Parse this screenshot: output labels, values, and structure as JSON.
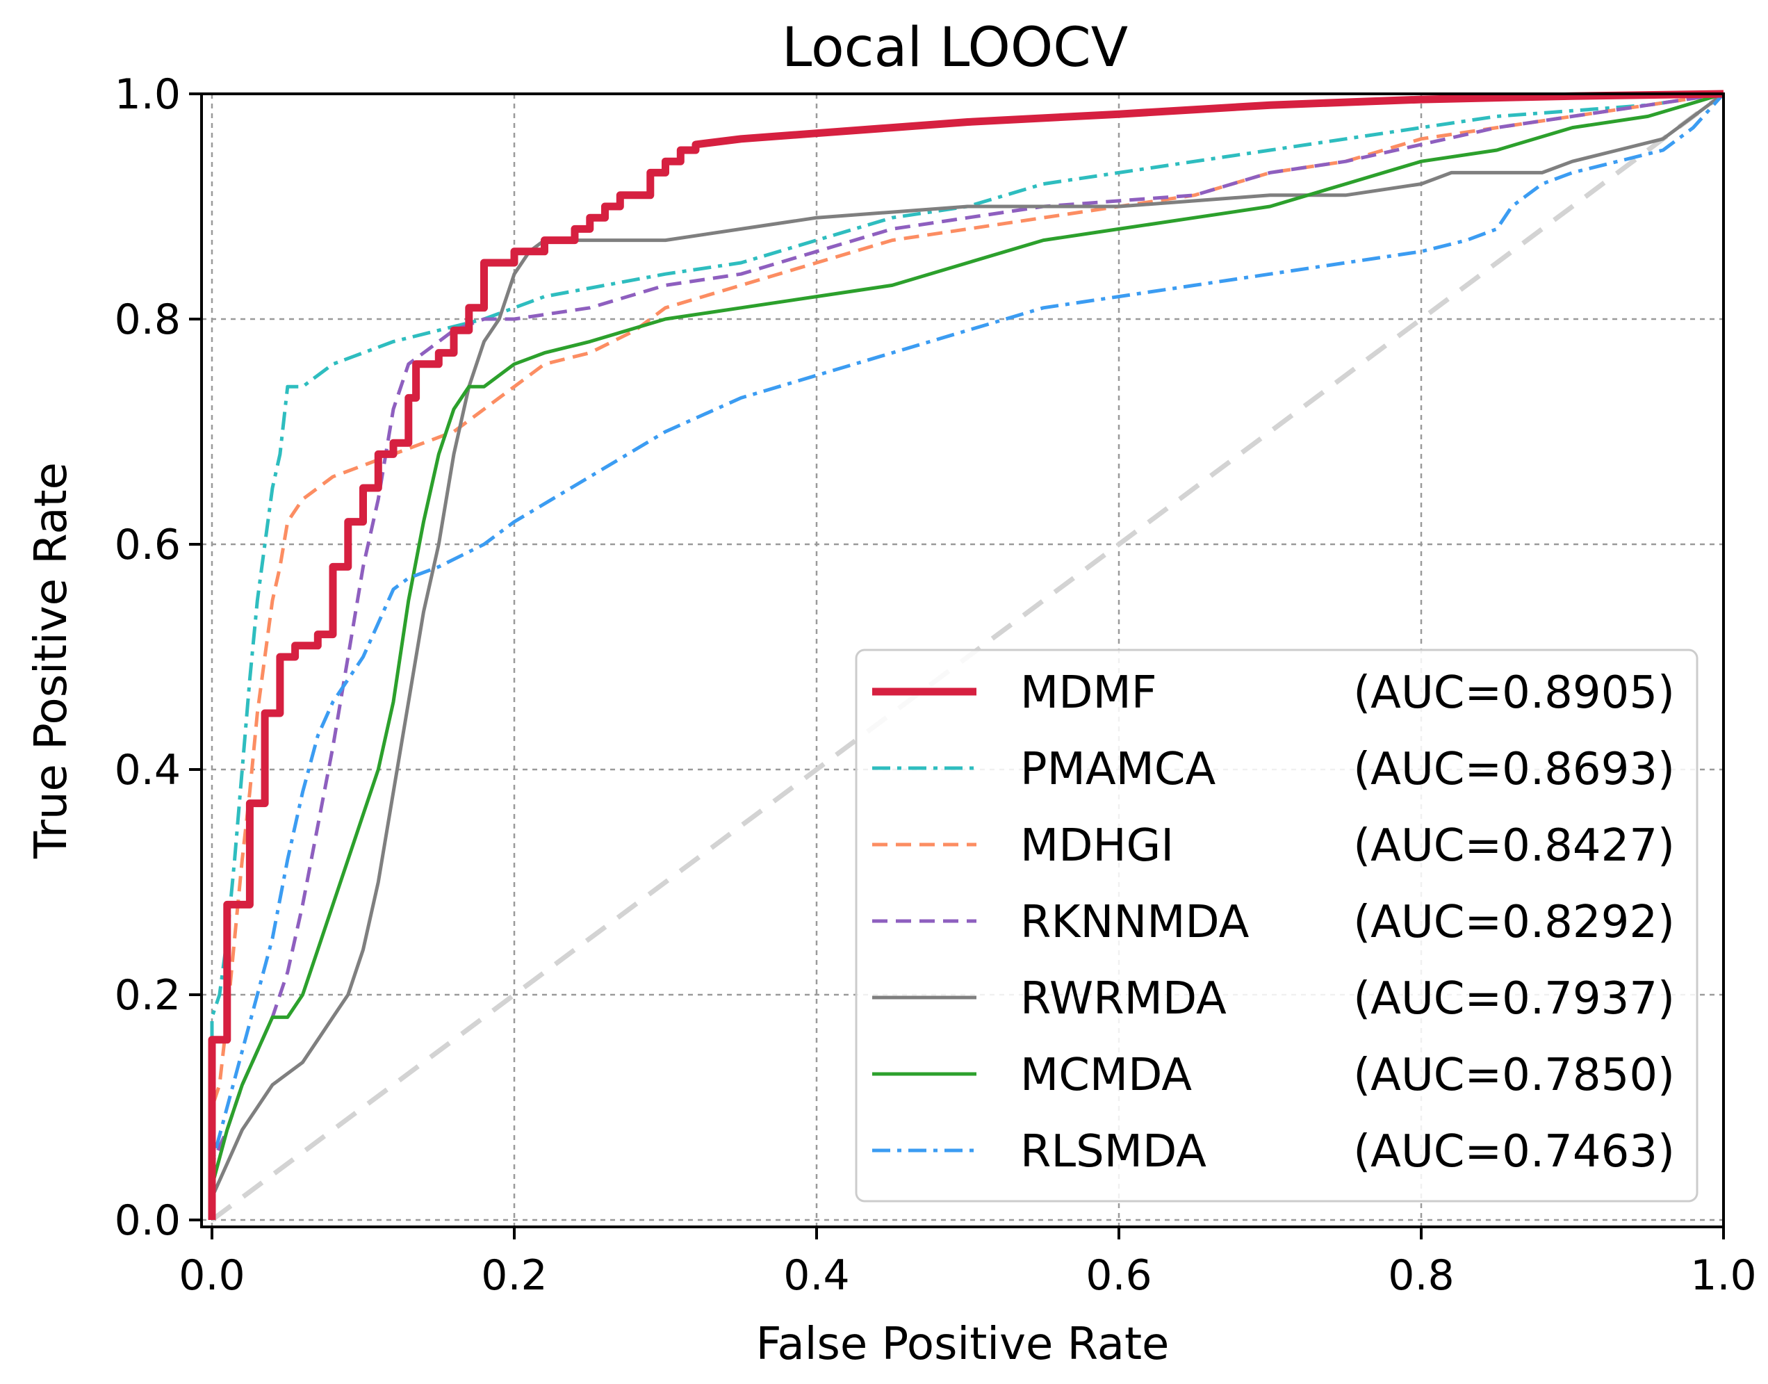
{
  "chart_data": {
    "type": "line",
    "title": "Local LOOCV",
    "xlabel": "False Positive Rate",
    "ylabel": "True Positive Rate",
    "xlim": [
      0.0,
      1.0
    ],
    "ylim": [
      0.0,
      1.0
    ],
    "xticks": [
      "0.0",
      "0.2",
      "0.4",
      "0.6",
      "0.8",
      "1.0"
    ],
    "yticks": [
      "0.0",
      "0.2",
      "0.4",
      "0.6",
      "0.8",
      "1.0"
    ],
    "grid": true,
    "legend_position": "lower-right",
    "reference_line": {
      "x": [
        0,
        1
      ],
      "y": [
        0,
        1
      ],
      "color": "#d3d3d3",
      "style": "dashed"
    },
    "series": [
      {
        "name": "MDMF",
        "auc_label": "(AUC=0.8905)",
        "color": "#d62040",
        "style": "solid-thick",
        "x": [
          0,
          0,
          0.003,
          0.003,
          0.01,
          0.01,
          0.015,
          0.015,
          0.025,
          0.025,
          0.035,
          0.035,
          0.045,
          0.045,
          0.055,
          0.055,
          0.07,
          0.07,
          0.08,
          0.08,
          0.09,
          0.09,
          0.1,
          0.1,
          0.11,
          0.11,
          0.12,
          0.12,
          0.13,
          0.13,
          0.135,
          0.135,
          0.15,
          0.15,
          0.16,
          0.16,
          0.17,
          0.17,
          0.18,
          0.18,
          0.19,
          0.19,
          0.2,
          0.2,
          0.22,
          0.22,
          0.24,
          0.24,
          0.25,
          0.25,
          0.26,
          0.26,
          0.27,
          0.27,
          0.29,
          0.29,
          0.3,
          0.3,
          0.31,
          0.31,
          0.32,
          0.32,
          0.35,
          0.4,
          0.45,
          0.5,
          0.6,
          0.7,
          0.8,
          0.9,
          1.0
        ],
        "y": [
          0,
          0.16,
          0.16,
          0.16,
          0.16,
          0.28,
          0.28,
          0.28,
          0.28,
          0.37,
          0.37,
          0.45,
          0.45,
          0.5,
          0.5,
          0.51,
          0.51,
          0.52,
          0.52,
          0.58,
          0.58,
          0.62,
          0.62,
          0.65,
          0.65,
          0.68,
          0.68,
          0.69,
          0.69,
          0.73,
          0.73,
          0.76,
          0.76,
          0.77,
          0.77,
          0.79,
          0.79,
          0.81,
          0.81,
          0.85,
          0.85,
          0.85,
          0.85,
          0.86,
          0.86,
          0.87,
          0.87,
          0.88,
          0.88,
          0.89,
          0.89,
          0.9,
          0.9,
          0.91,
          0.91,
          0.93,
          0.93,
          0.94,
          0.94,
          0.95,
          0.95,
          0.955,
          0.96,
          0.965,
          0.97,
          0.975,
          0.982,
          0.99,
          0.995,
          0.998,
          1.0
        ]
      },
      {
        "name": "PMAMCA",
        "auc_label": "(AUC=0.8693)",
        "color": "#2ebdbf",
        "style": "dash-dot",
        "x": [
          0,
          0,
          0.005,
          0.01,
          0.015,
          0.02,
          0.025,
          0.03,
          0.035,
          0.04,
          0.045,
          0.05,
          0.06,
          0.07,
          0.08,
          0.1,
          0.12,
          0.15,
          0.18,
          0.22,
          0.26,
          0.3,
          0.35,
          0.4,
          0.45,
          0.5,
          0.55,
          0.6,
          0.65,
          0.7,
          0.75,
          0.8,
          0.85,
          0.9,
          0.95,
          1.0
        ],
        "y": [
          0,
          0.18,
          0.2,
          0.25,
          0.32,
          0.4,
          0.48,
          0.55,
          0.6,
          0.65,
          0.68,
          0.74,
          0.74,
          0.75,
          0.76,
          0.77,
          0.78,
          0.79,
          0.8,
          0.82,
          0.83,
          0.84,
          0.85,
          0.87,
          0.89,
          0.9,
          0.92,
          0.93,
          0.94,
          0.95,
          0.96,
          0.97,
          0.98,
          0.985,
          0.99,
          1.0
        ]
      },
      {
        "name": "MDHGI",
        "auc_label": "(AUC=0.8427)",
        "color": "#fc8d62",
        "style": "dashed",
        "x": [
          0,
          0,
          0.005,
          0.01,
          0.015,
          0.02,
          0.025,
          0.03,
          0.035,
          0.04,
          0.045,
          0.05,
          0.06,
          0.07,
          0.08,
          0.1,
          0.12,
          0.14,
          0.16,
          0.18,
          0.2,
          0.22,
          0.25,
          0.28,
          0.3,
          0.35,
          0.4,
          0.45,
          0.5,
          0.55,
          0.6,
          0.65,
          0.7,
          0.75,
          0.8,
          0.85,
          0.9,
          0.95,
          1.0
        ],
        "y": [
          0,
          0.1,
          0.12,
          0.18,
          0.25,
          0.32,
          0.38,
          0.45,
          0.5,
          0.55,
          0.58,
          0.62,
          0.64,
          0.65,
          0.66,
          0.67,
          0.68,
          0.69,
          0.7,
          0.72,
          0.74,
          0.76,
          0.77,
          0.79,
          0.81,
          0.83,
          0.85,
          0.87,
          0.88,
          0.89,
          0.9,
          0.91,
          0.93,
          0.94,
          0.96,
          0.97,
          0.98,
          0.99,
          1.0
        ]
      },
      {
        "name": "RKNNMDA",
        "auc_label": "(AUC=0.8292)",
        "color": "#8e5fbf",
        "style": "dashed",
        "x": [
          0,
          0,
          0.01,
          0.02,
          0.03,
          0.04,
          0.05,
          0.06,
          0.07,
          0.08,
          0.09,
          0.1,
          0.11,
          0.115,
          0.12,
          0.125,
          0.13,
          0.14,
          0.15,
          0.16,
          0.18,
          0.2,
          0.25,
          0.3,
          0.35,
          0.4,
          0.45,
          0.5,
          0.55,
          0.6,
          0.65,
          0.7,
          0.75,
          0.8,
          0.85,
          0.9,
          0.95,
          1.0
        ],
        "y": [
          0,
          0.05,
          0.08,
          0.12,
          0.15,
          0.18,
          0.22,
          0.28,
          0.35,
          0.42,
          0.5,
          0.58,
          0.64,
          0.68,
          0.72,
          0.74,
          0.76,
          0.77,
          0.78,
          0.79,
          0.8,
          0.8,
          0.81,
          0.83,
          0.84,
          0.86,
          0.88,
          0.89,
          0.9,
          0.905,
          0.91,
          0.93,
          0.94,
          0.955,
          0.97,
          0.98,
          0.99,
          1.0
        ]
      },
      {
        "name": "RWRMDA",
        "auc_label": "(AUC=0.7937)",
        "color": "#7f7f7f",
        "style": "solid",
        "x": [
          0,
          0,
          0.01,
          0.02,
          0.03,
          0.04,
          0.05,
          0.06,
          0.07,
          0.08,
          0.09,
          0.1,
          0.11,
          0.12,
          0.13,
          0.14,
          0.15,
          0.16,
          0.17,
          0.18,
          0.19,
          0.2,
          0.21,
          0.22,
          0.25,
          0.3,
          0.35,
          0.4,
          0.45,
          0.5,
          0.55,
          0.6,
          0.65,
          0.7,
          0.75,
          0.8,
          0.82,
          0.85,
          0.88,
          0.9,
          0.93,
          0.96,
          0.98,
          1.0
        ],
        "y": [
          0,
          0.02,
          0.05,
          0.08,
          0.1,
          0.12,
          0.13,
          0.14,
          0.16,
          0.18,
          0.2,
          0.24,
          0.3,
          0.38,
          0.46,
          0.54,
          0.6,
          0.68,
          0.74,
          0.78,
          0.8,
          0.84,
          0.86,
          0.87,
          0.87,
          0.87,
          0.88,
          0.89,
          0.895,
          0.9,
          0.9,
          0.9,
          0.905,
          0.91,
          0.91,
          0.92,
          0.93,
          0.93,
          0.93,
          0.94,
          0.95,
          0.96,
          0.98,
          1.0
        ]
      },
      {
        "name": "MCMDA",
        "auc_label": "(AUC=0.7850)",
        "color": "#2ca02c",
        "style": "solid",
        "x": [
          0,
          0,
          0.01,
          0.02,
          0.03,
          0.04,
          0.05,
          0.06,
          0.07,
          0.08,
          0.09,
          0.1,
          0.11,
          0.12,
          0.13,
          0.14,
          0.15,
          0.16,
          0.17,
          0.18,
          0.2,
          0.22,
          0.25,
          0.3,
          0.35,
          0.4,
          0.45,
          0.5,
          0.55,
          0.6,
          0.65,
          0.7,
          0.75,
          0.8,
          0.85,
          0.9,
          0.95,
          1.0
        ],
        "y": [
          0,
          0.03,
          0.08,
          0.12,
          0.15,
          0.18,
          0.18,
          0.2,
          0.24,
          0.28,
          0.32,
          0.36,
          0.4,
          0.46,
          0.55,
          0.62,
          0.68,
          0.72,
          0.74,
          0.74,
          0.76,
          0.77,
          0.78,
          0.8,
          0.81,
          0.82,
          0.83,
          0.85,
          0.87,
          0.88,
          0.89,
          0.9,
          0.92,
          0.94,
          0.95,
          0.97,
          0.98,
          1.0
        ]
      },
      {
        "name": "RLSMDA",
        "auc_label": "(AUC=0.7463)",
        "color": "#3b9cf2",
        "style": "dash-dot",
        "x": [
          0,
          0,
          0.01,
          0.02,
          0.03,
          0.04,
          0.05,
          0.06,
          0.07,
          0.08,
          0.09,
          0.1,
          0.11,
          0.12,
          0.13,
          0.15,
          0.18,
          0.2,
          0.25,
          0.3,
          0.35,
          0.4,
          0.45,
          0.5,
          0.55,
          0.6,
          0.65,
          0.7,
          0.75,
          0.8,
          0.83,
          0.85,
          0.86,
          0.88,
          0.9,
          0.93,
          0.96,
          0.98,
          1.0
        ],
        "y": [
          0,
          0.05,
          0.1,
          0.15,
          0.2,
          0.25,
          0.32,
          0.38,
          0.43,
          0.46,
          0.48,
          0.5,
          0.53,
          0.56,
          0.57,
          0.58,
          0.6,
          0.62,
          0.66,
          0.7,
          0.73,
          0.75,
          0.77,
          0.79,
          0.81,
          0.82,
          0.83,
          0.84,
          0.85,
          0.86,
          0.87,
          0.88,
          0.9,
          0.92,
          0.93,
          0.94,
          0.95,
          0.97,
          1.0
        ]
      }
    ]
  }
}
